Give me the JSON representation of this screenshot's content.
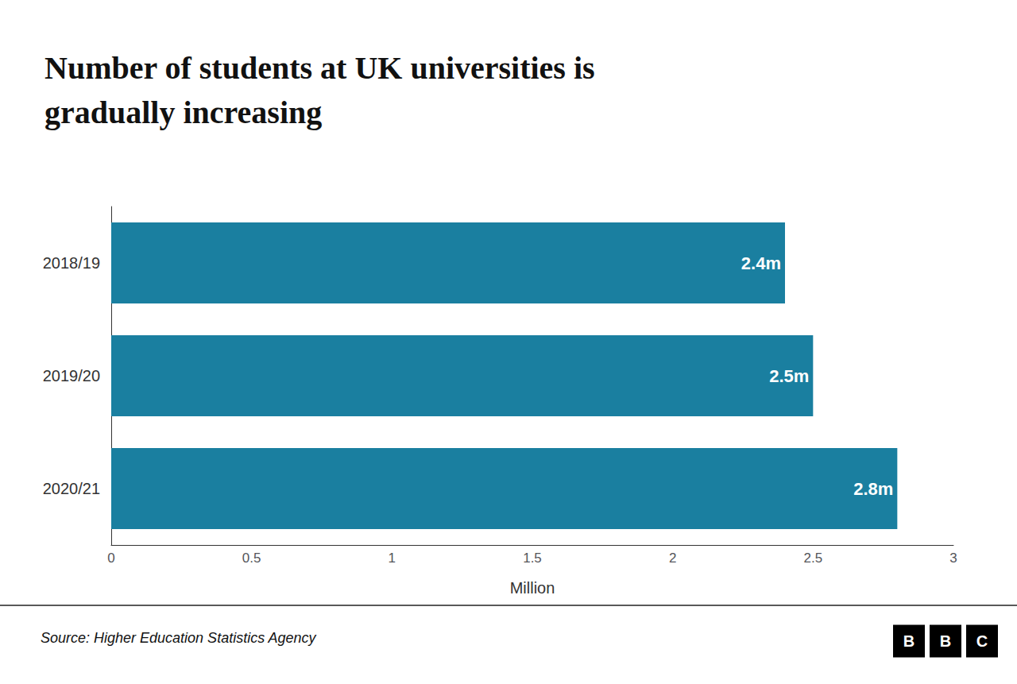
{
  "chart_data": {
    "type": "bar",
    "orientation": "horizontal",
    "title": "Number of students at UK universities is\ngradually increasing",
    "categories": [
      "2018/19",
      "2019/20",
      "2020/21"
    ],
    "values": [
      2.4,
      2.5,
      2.8
    ],
    "value_labels": [
      "2.4m",
      "2.5m",
      "2.8m"
    ],
    "data_labels": true,
    "color": "#1a7fa0",
    "xlabel": "Million",
    "xlim": [
      0,
      3
    ],
    "xticks": [
      0,
      0.5,
      1,
      1.5,
      2,
      2.5,
      3
    ],
    "grid": false,
    "source": "Source: Higher Education Statistics Agency",
    "logo": [
      "B",
      "B",
      "C"
    ]
  }
}
